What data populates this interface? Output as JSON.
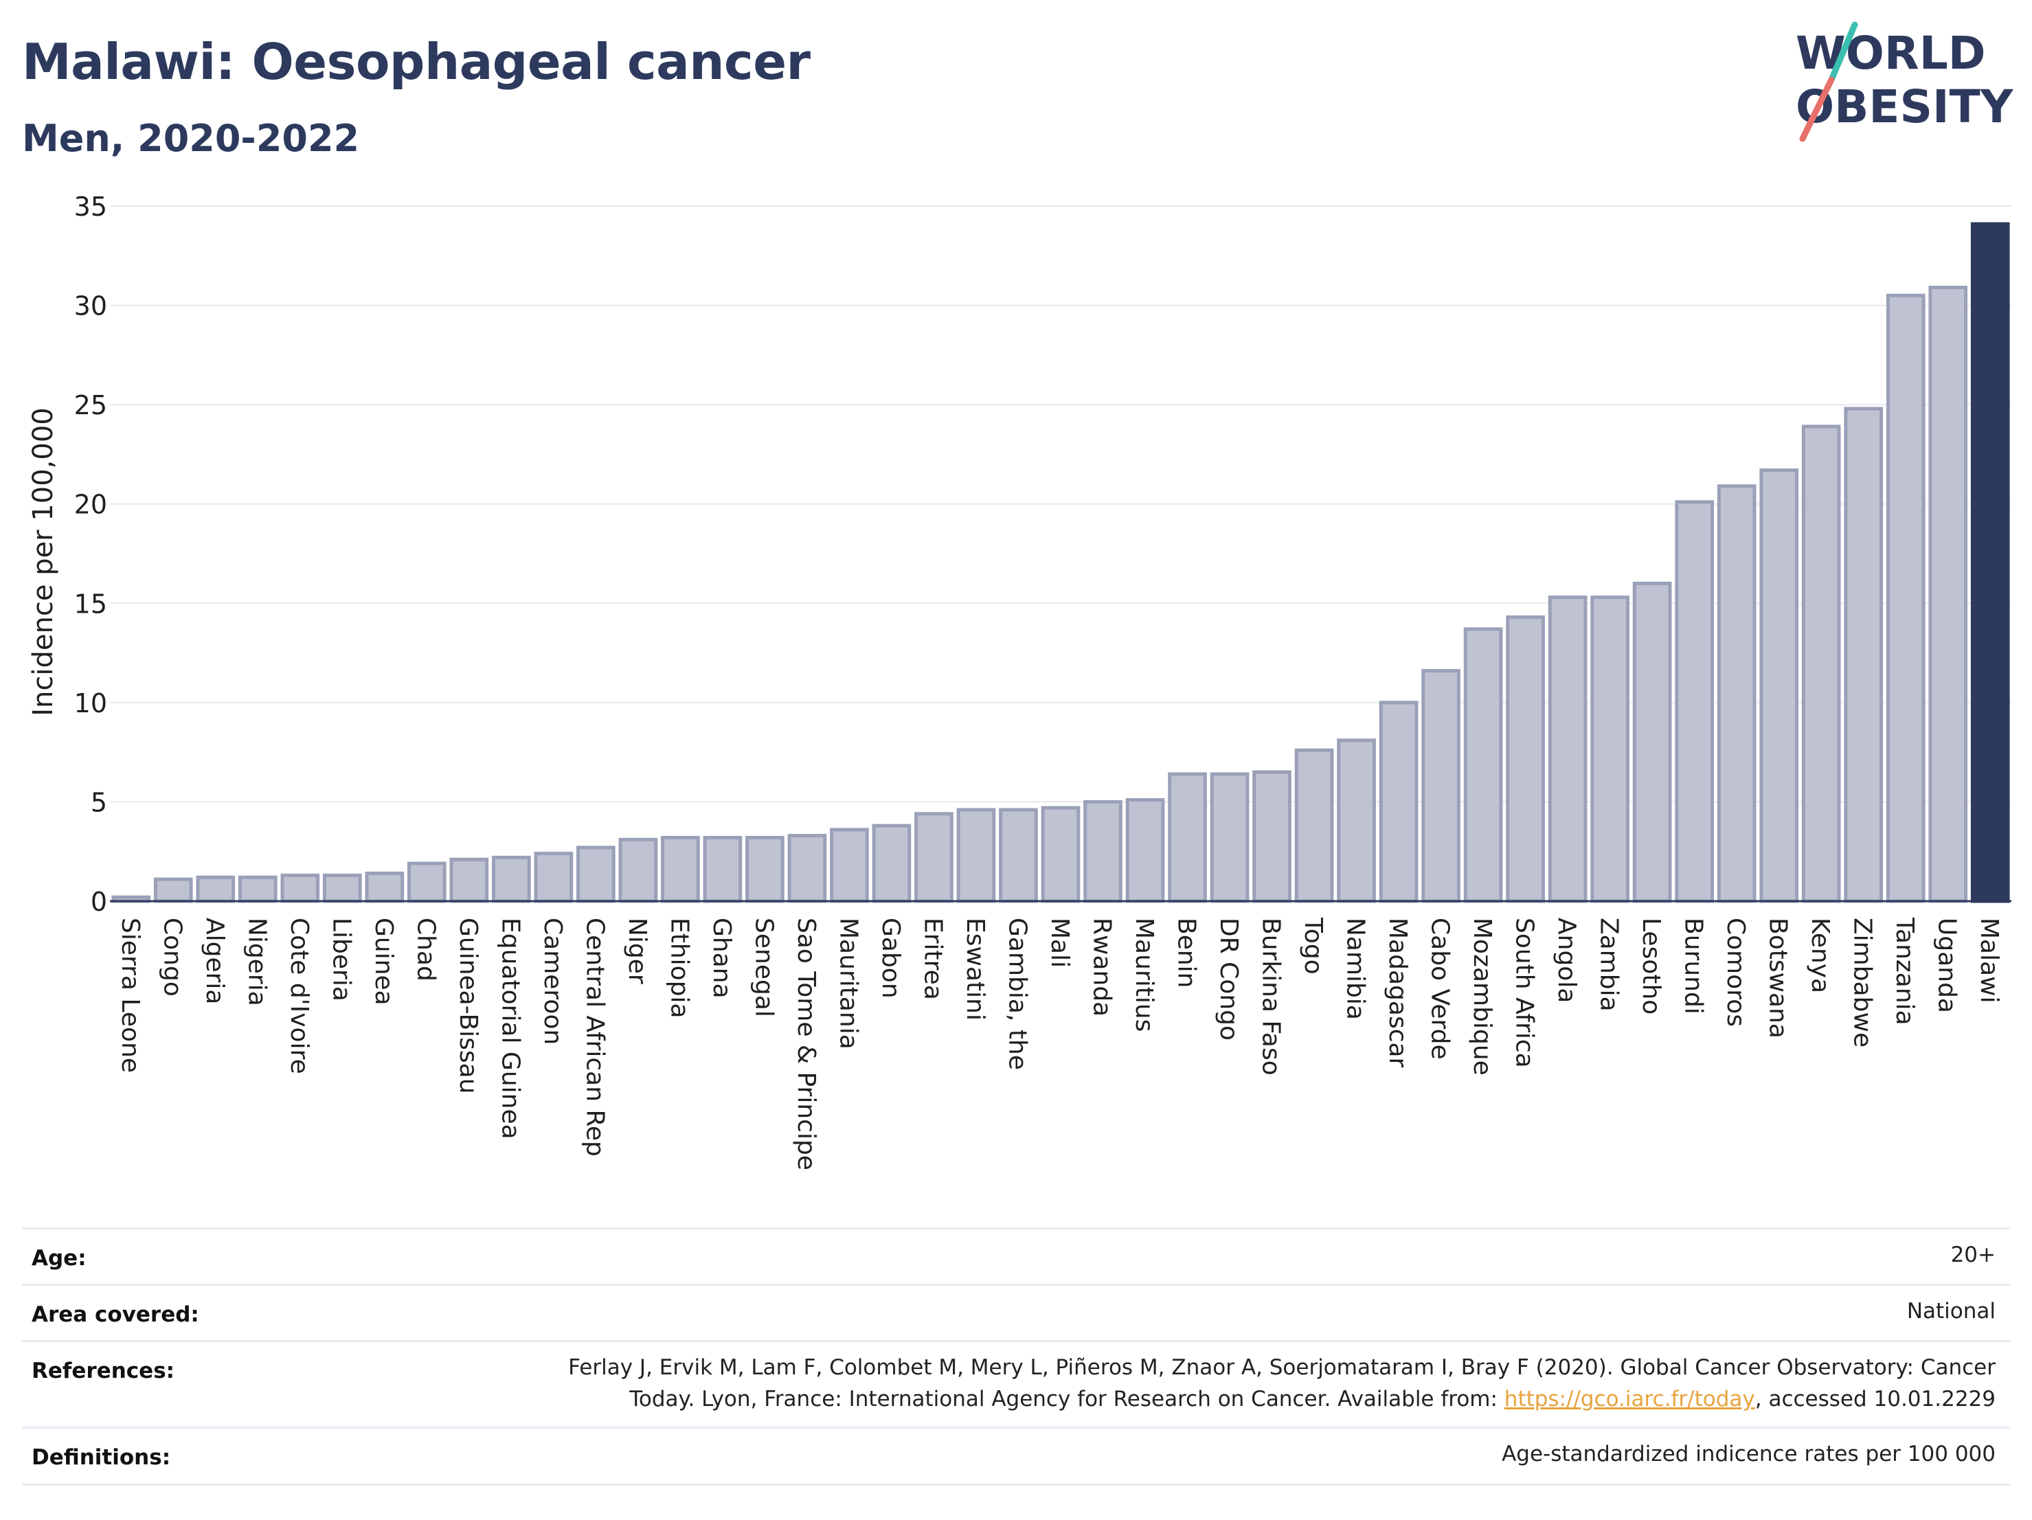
{
  "header": {
    "title": "Malawi: Oesophageal cancer",
    "subtitle": "Men, 2020-2022"
  },
  "logo": {
    "line1": "WORLD",
    "line2": "OBESITY",
    "accent_colors": [
      "#3bbfb0",
      "#e8706a"
    ],
    "text_color": "#2d3a5e"
  },
  "chart_data": {
    "type": "bar",
    "ylabel": "Incidence per 100,000",
    "xlabel": "",
    "ylim": [
      0,
      35
    ],
    "yticks": [
      0,
      5,
      10,
      15,
      20,
      25,
      30,
      35
    ],
    "grid": true,
    "highlight": "Malawi",
    "colors": {
      "bar": "#bfc3d1",
      "bar_edge": "#9aa0b8",
      "highlight": "#2d3a5e"
    },
    "categories": [
      "Sierra Leone",
      "Congo",
      "Algeria",
      "Nigeria",
      "Cote d'Ivoire",
      "Liberia",
      "Guinea",
      "Chad",
      "Guinea-Bissau",
      "Equatorial Guinea",
      "Cameroon",
      "Central African Rep",
      "Niger",
      "Ethiopia",
      "Ghana",
      "Senegal",
      "Sao Tome & Principe",
      "Mauritania",
      "Gabon",
      "Eritrea",
      "Eswatini",
      "Gambia, the",
      "Mali",
      "Rwanda",
      "Mauritius",
      "Benin",
      "DR Congo",
      "Burkina Faso",
      "Togo",
      "Namibia",
      "Madagascar",
      "Cabo Verde",
      "Mozambique",
      "South Africa",
      "Angola",
      "Zambia",
      "Lesotho",
      "Burundi",
      "Comoros",
      "Botswana",
      "Kenya",
      "Zimbabwe",
      "Tanzania",
      "Uganda",
      "Malawi"
    ],
    "values": [
      0.2,
      1.1,
      1.2,
      1.2,
      1.3,
      1.3,
      1.4,
      1.9,
      2.1,
      2.2,
      2.4,
      2.7,
      3.1,
      3.2,
      3.2,
      3.2,
      3.3,
      3.6,
      3.8,
      4.4,
      4.6,
      4.6,
      4.7,
      5.0,
      5.1,
      6.4,
      6.4,
      6.5,
      7.6,
      8.1,
      10.0,
      11.6,
      13.7,
      14.3,
      15.3,
      15.3,
      16.0,
      20.1,
      20.9,
      21.7,
      23.9,
      24.8,
      30.5,
      30.9,
      34.1
    ]
  },
  "meta": {
    "age_label": "Age:",
    "age_value": "20+",
    "area_label": "Area covered:",
    "area_value": "National",
    "references_label": "References:",
    "references_line1": "Ferlay J, Ervik M, Lam F, Colombet M, Mery L, Piñeros M, Znaor A, Soerjomataram I, Bray F (2020). Global Cancer Observatory: Cancer",
    "references_line2_pre": "Today. Lyon, France: International Agency for Research on Cancer. Available from: ",
    "references_link": "https://gco.iarc.fr/today",
    "references_line2_post": ", accessed 10.01.2229",
    "definitions_label": "Definitions:",
    "definitions_value": "Age-standardized indicence rates per 100 000"
  }
}
